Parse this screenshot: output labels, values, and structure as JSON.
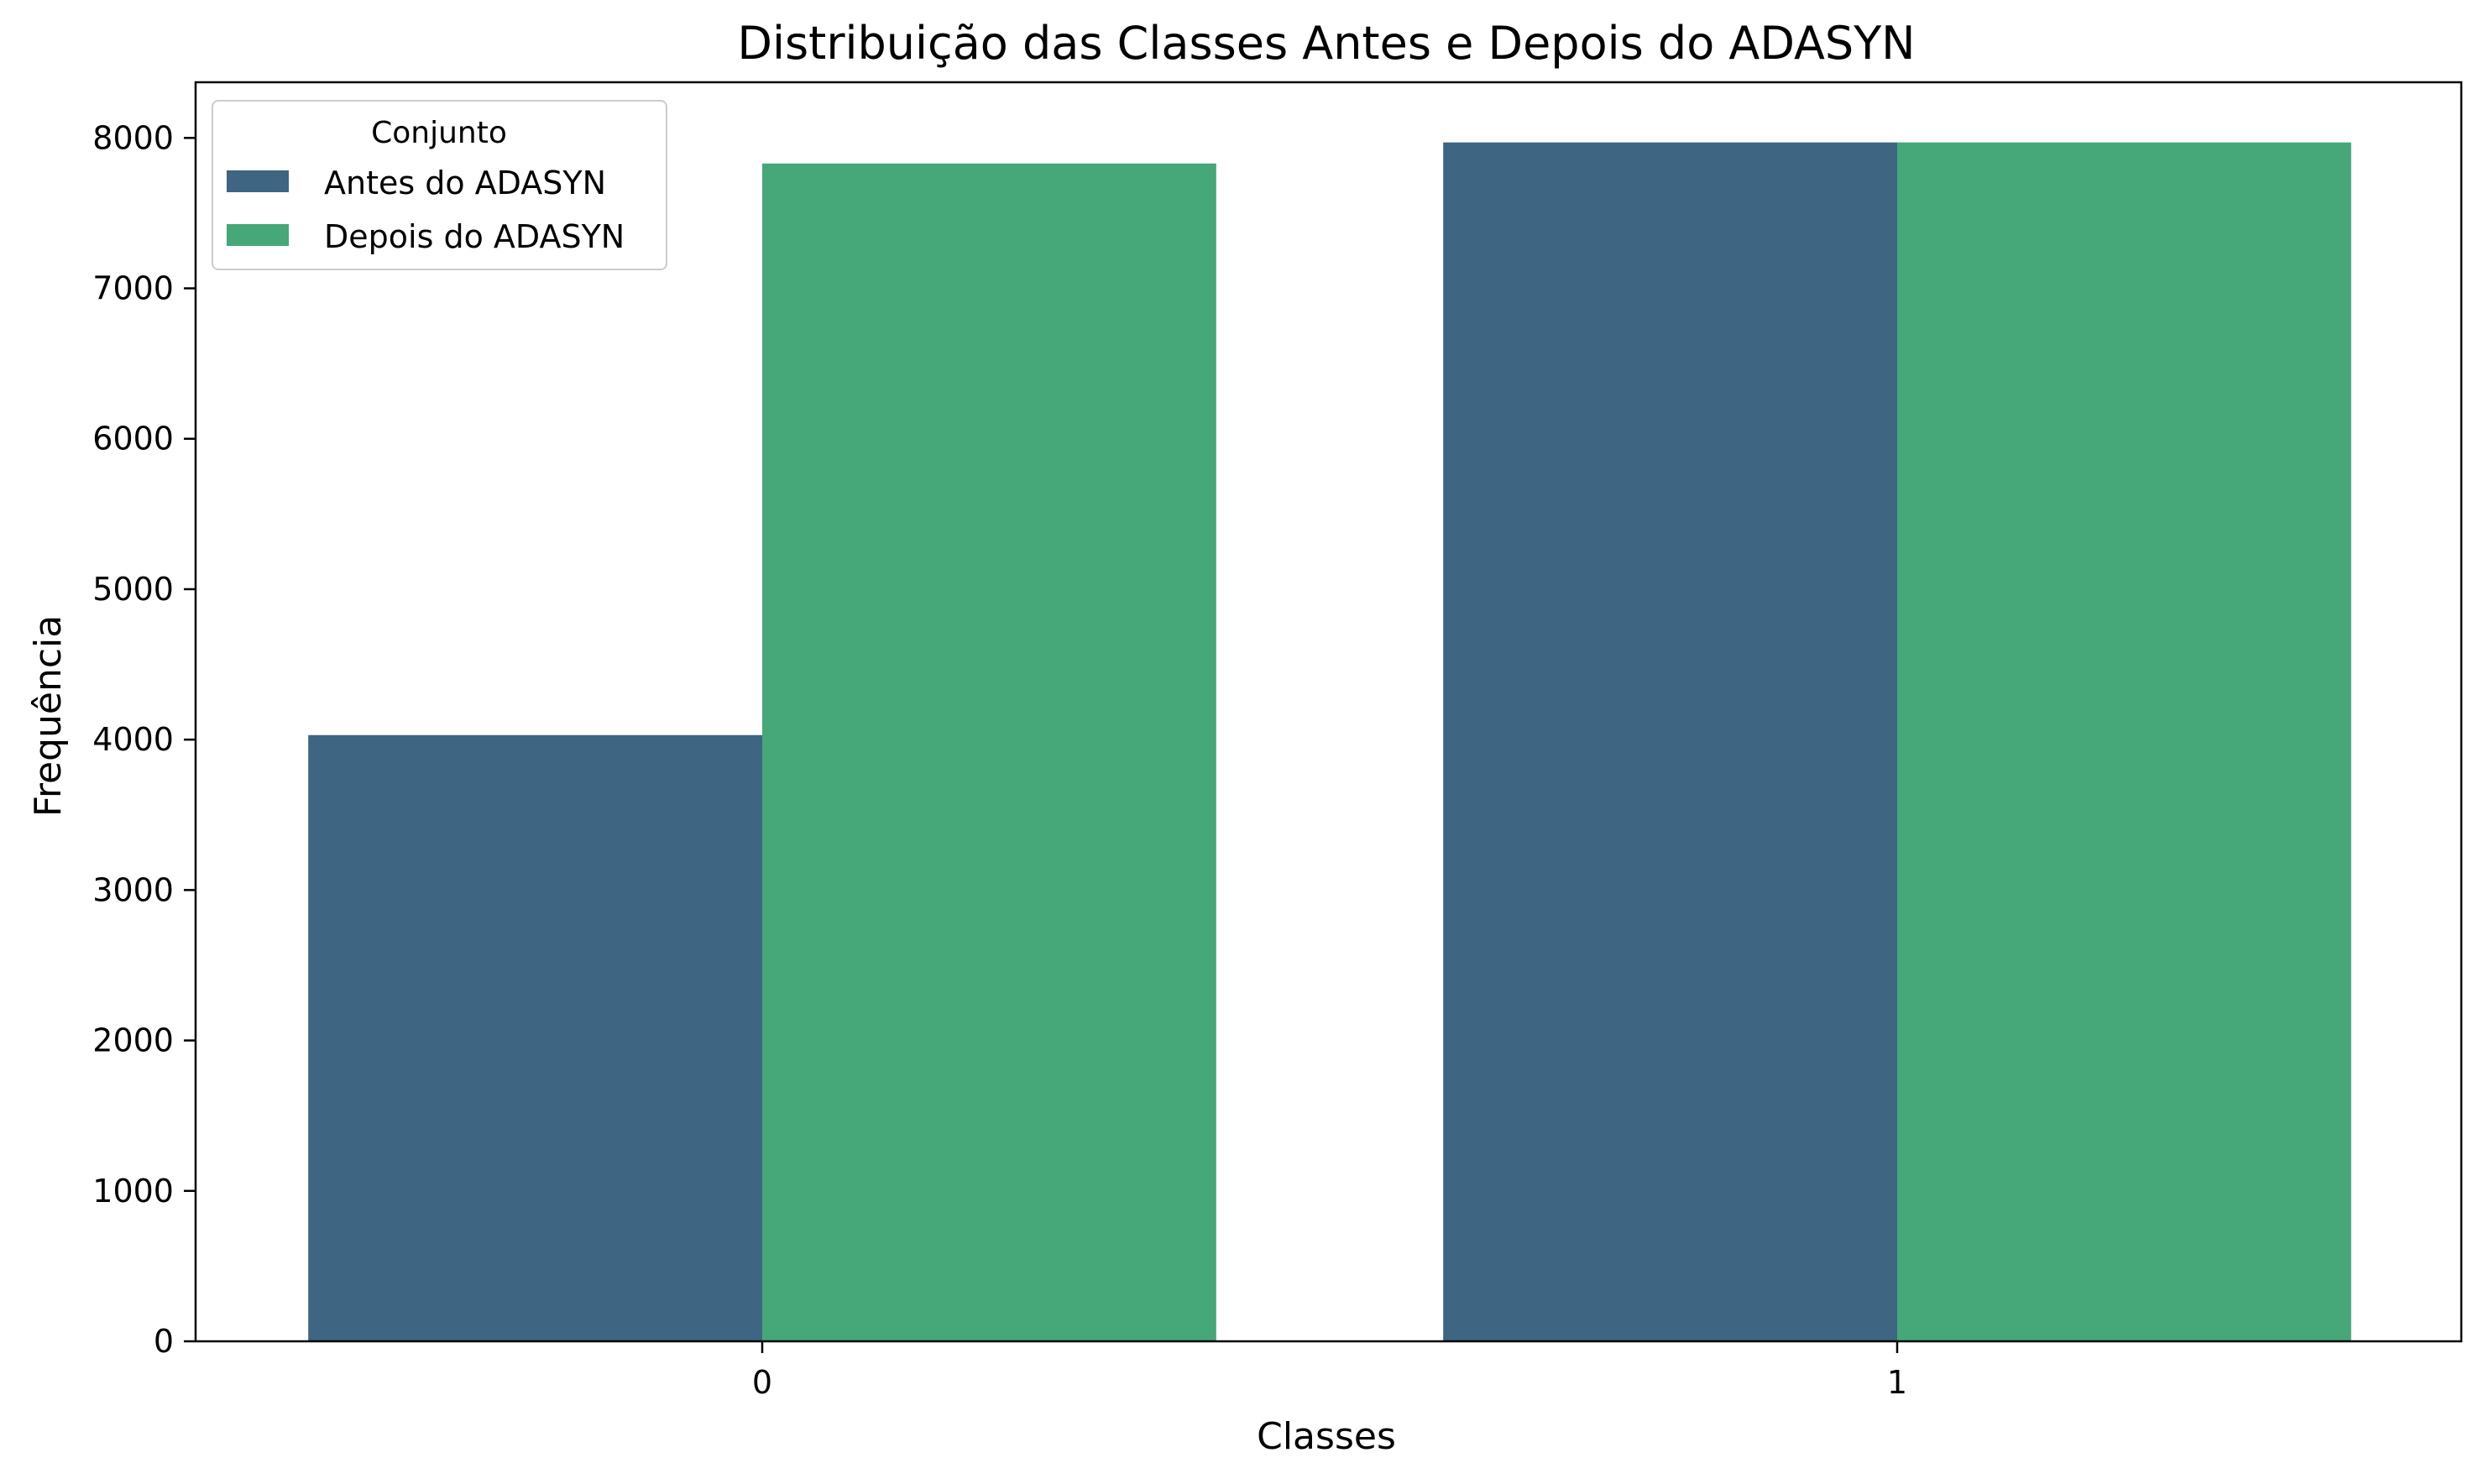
{
  "chart_data": {
    "type": "bar",
    "title": "Distribuição das Classes Antes e Depois do ADASYN",
    "xlabel": "Classes",
    "ylabel": "Frequência",
    "categories": [
      "0",
      "1"
    ],
    "series": [
      {
        "name": "Antes do ADASYN",
        "values": [
          4030,
          7970
        ],
        "color": "#3e6582"
      },
      {
        "name": "Depois do ADASYN",
        "values": [
          7830,
          7970
        ],
        "color": "#46a779"
      }
    ],
    "ylim": [
      0,
      8370
    ],
    "yticks": [
      0,
      1000,
      2000,
      3000,
      4000,
      5000,
      6000,
      7000,
      8000
    ],
    "grid": false,
    "legend": {
      "title": "Conjunto",
      "position": "top-left"
    }
  }
}
